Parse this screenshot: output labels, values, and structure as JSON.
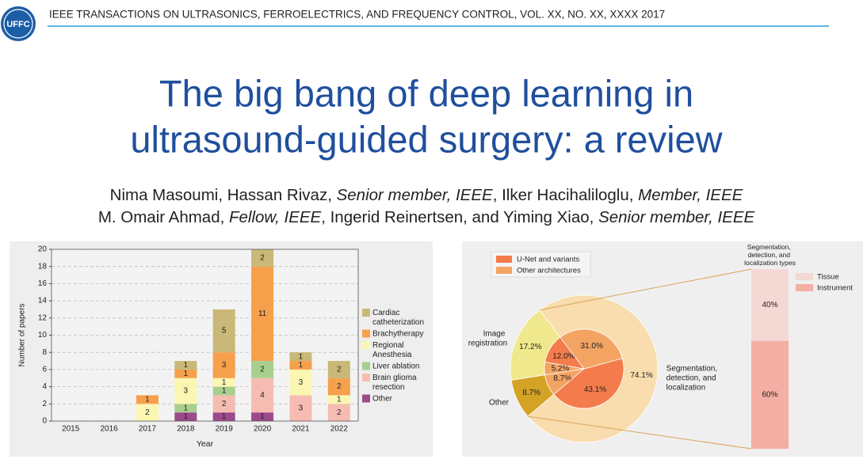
{
  "header": {
    "logo": "UFFC",
    "journal": "IEEE TRANSACTIONS ON ULTRASONICS, FERROELECTRICS, AND FREQUENCY CONTROL, VOL. XX, NO. XX, XXXX 2017"
  },
  "title": [
    "The big bang of deep learning in",
    "ultrasound-guided surgery: a review"
  ],
  "authors": [
    [
      {
        "text": "Nima Masoumi, Hassan Rivaz, ",
        "italic": false
      },
      {
        "text": "Senior member, IEEE",
        "italic": true
      },
      {
        "text": ", Ilker Hacihaliloglu, ",
        "italic": false
      },
      {
        "text": "Member, IEEE",
        "italic": true
      }
    ],
    [
      {
        "text": "M. Omair Ahmad, ",
        "italic": false
      },
      {
        "text": "Fellow, IEEE",
        "italic": true
      },
      {
        "text": ", Ingerid Reinertsen, and Yiming Xiao, ",
        "italic": false
      },
      {
        "text": "Senior member, IEEE",
        "italic": true
      }
    ]
  ],
  "chart_data": [
    {
      "type": "bar",
      "stacked": true,
      "xlabel": "Year",
      "ylabel": "Number of papers",
      "categories": [
        "2015",
        "2016",
        "2017",
        "2018",
        "2019",
        "2020",
        "2021",
        "2022"
      ],
      "series": [
        {
          "name": "Other",
          "color": "#9c4a8c",
          "values": [
            0,
            0,
            0,
            1,
            1,
            1,
            0,
            0
          ]
        },
        {
          "name": "Brain glioma resection",
          "color": "#f6bcb2",
          "values": [
            0,
            0,
            0,
            0,
            2,
            4,
            3,
            2
          ]
        },
        {
          "name": "Liver ablation",
          "color": "#a9cf8f",
          "values": [
            0,
            0,
            0,
            1,
            1,
            2,
            0,
            0
          ]
        },
        {
          "name": "Regional Anesthesia",
          "color": "#fbf7b2",
          "values": [
            0,
            0,
            2,
            3,
            1,
            0,
            3,
            1
          ]
        },
        {
          "name": "Brachytherapy",
          "color": "#f6a04c",
          "values": [
            0,
            0,
            1,
            1,
            3,
            11,
            1,
            2
          ]
        },
        {
          "name": "Cardiac catheterization",
          "color": "#c9b877",
          "values": [
            0,
            0,
            0,
            1,
            5,
            2,
            1,
            2
          ]
        }
      ],
      "ylim": [
        0,
        20
      ],
      "yticks": [
        0,
        2,
        4,
        6,
        8,
        10,
        12,
        14,
        16,
        18,
        20
      ],
      "grid": true
    },
    {
      "type": "pie",
      "legend": [
        {
          "name": "U-Net and variants",
          "color": "#f47c4c"
        },
        {
          "name": "Other architectures",
          "color": "#f4a462"
        }
      ],
      "outer": {
        "categories": [
          "Image registration",
          "Other",
          "Segmentation, detection, and localization"
        ],
        "values": [
          17.2,
          8.7,
          74.1
        ],
        "value_labels": [
          "17.2%",
          "8.7%",
          "74.1%"
        ],
        "colors": [
          "#f0e88c",
          "#d4a224",
          "#f9ddae"
        ]
      },
      "inner": {
        "values": [
          12.0,
          5.2,
          8.7,
          43.1,
          31.0
        ],
        "value_labels": [
          "12.0%",
          "5.2%",
          "8.7%",
          "43.1%",
          "31.0%"
        ],
        "colors": [
          "#f47c4c",
          "#f4a462",
          "#f4a462",
          "#f47c4c",
          "#f4a462"
        ]
      },
      "breakdown": {
        "title": "Segmentation, detection, and localization types",
        "categories": [
          "Tissue",
          "Instrument"
        ],
        "values": [
          40,
          60
        ],
        "value_labels": [
          "40%",
          "60%"
        ],
        "colors": [
          "#f3d8d4",
          "#f4aea4"
        ]
      }
    }
  ]
}
